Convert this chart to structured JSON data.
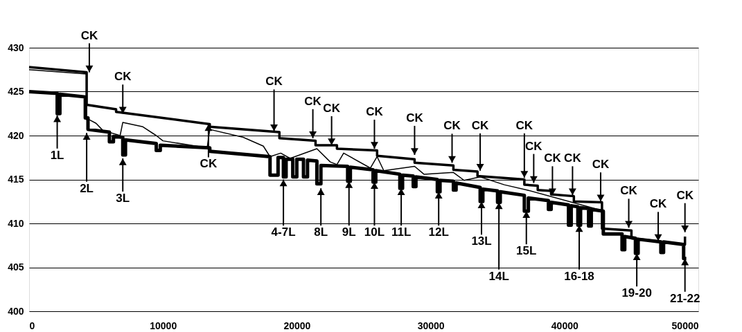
{
  "chart_data": {
    "type": "line",
    "xlim": [
      0,
      50000
    ],
    "ylim": [
      400,
      430
    ],
    "xticks": [
      0,
      10000,
      20000,
      30000,
      40000,
      50000
    ],
    "yticks": [
      400,
      405,
      410,
      415,
      420,
      425,
      430
    ],
    "grid": "y",
    "marker": "none",
    "line_style": "solid",
    "series": [
      {
        "color": "#000000",
        "x": [
          0,
          4300,
          4300,
          6500,
          6500,
          7000,
          13500,
          13500,
          18700,
          18700,
          21400,
          21400,
          23000,
          23000,
          26000,
          26000,
          28800,
          28800,
          31700,
          31700,
          33500,
          33500,
          37000,
          37000,
          38000,
          38000,
          39000,
          39000,
          40700,
          40700,
          42800,
          42800,
          45000,
          45000,
          49000,
          49000
        ],
        "values": [
          427.8,
          427.2,
          423.5,
          423.0,
          422.7,
          422.6,
          421.3,
          421.0,
          420.4,
          419.7,
          419.4,
          418.9,
          418.9,
          418.5,
          418.3,
          417.7,
          417.3,
          416.9,
          416.6,
          416.1,
          415.9,
          415.4,
          415.0,
          414.4,
          414.3,
          413.8,
          413.7,
          413.3,
          413.1,
          412.5,
          412.4,
          409.4,
          409.2,
          408.3,
          407.6,
          408.5
        ]
      },
      {
        "color": "#000000",
        "x": [
          0,
          4300,
          4300,
          4500,
          5000,
          5500,
          6800,
          7000,
          8500,
          9500,
          10000,
          13300,
          13500,
          16000,
          17500,
          18000,
          18800,
          19500,
          21500,
          22500,
          23000,
          23500,
          25500,
          26000,
          26500,
          28800,
          29500,
          31700,
          32500,
          33700,
          35500,
          37200,
          42500
        ],
        "values": [
          427.5,
          427.0,
          421.8,
          421.8,
          421.4,
          420.6,
          420.0,
          421.5,
          421.0,
          420.0,
          419.4,
          418.6,
          420.7,
          419.8,
          418.8,
          417.6,
          418.0,
          417.4,
          418.5,
          417.0,
          416.7,
          418.0,
          416.3,
          417.6,
          416.0,
          416.5,
          415.6,
          415.8,
          414.9,
          415.3,
          414.4,
          413.8,
          411.6
        ]
      },
      {
        "color": "#000000",
        "x": [
          0,
          2100,
          2100,
          2300,
          2300,
          4200,
          4200,
          4400,
          4400,
          6000,
          6000,
          6300,
          6300,
          7000,
          7000,
          7200,
          7200,
          9500,
          9500,
          9800,
          9800,
          13500,
          13500,
          18000,
          18000,
          18600,
          18600,
          19000,
          19000,
          19200,
          19200,
          19700,
          19700,
          20000,
          20000,
          20500,
          20500,
          20800,
          20800,
          21500,
          21500,
          21800,
          21800,
          23800,
          23800,
          24000,
          24000,
          25700,
          25700,
          25900,
          25900,
          27700,
          27700,
          27900,
          27900,
          28700,
          28700,
          28900,
          28900,
          30500,
          30500,
          30700,
          30700,
          31700,
          31700,
          31900,
          31900,
          33700,
          33700,
          33900,
          33900,
          35000,
          35000,
          35200,
          35200,
          37000,
          37000,
          37300,
          37300,
          38800,
          38800,
          39000,
          39000,
          40300,
          40300,
          40500,
          40500,
          41000,
          41000,
          41200,
          41200,
          41800,
          41800,
          42000,
          42000,
          42900,
          42900,
          44300,
          44300,
          44500,
          44500,
          45300,
          45300,
          45500,
          45500,
          47200,
          47200,
          47400,
          47400,
          48900,
          48900,
          49100
        ],
        "values": [
          425.0,
          424.8,
          422.5,
          422.5,
          424.7,
          424.4,
          422.0,
          422.0,
          420.7,
          420.4,
          419.3,
          419.3,
          419.9,
          419.8,
          417.8,
          417.8,
          419.5,
          419.1,
          418.3,
          418.3,
          418.9,
          418.6,
          418.2,
          417.6,
          415.5,
          415.5,
          417.5,
          417.5,
          415.3,
          415.3,
          417.3,
          417.3,
          415.3,
          415.3,
          417.3,
          417.3,
          415.3,
          415.3,
          417.2,
          417.1,
          414.5,
          414.5,
          416.6,
          416.5,
          414.8,
          414.8,
          416.4,
          416.1,
          414.7,
          414.7,
          416.0,
          415.6,
          414.0,
          414.0,
          415.5,
          415.4,
          414.2,
          414.2,
          415.3,
          415.0,
          413.6,
          413.6,
          414.9,
          414.8,
          413.8,
          413.8,
          414.6,
          414.1,
          412.5,
          412.5,
          413.9,
          413.7,
          412.4,
          412.4,
          413.6,
          413.2,
          411.4,
          411.4,
          412.9,
          412.6,
          411.6,
          411.6,
          412.4,
          412.1,
          409.8,
          409.8,
          412.0,
          411.9,
          409.8,
          409.8,
          411.8,
          411.7,
          409.7,
          409.7,
          411.6,
          411.4,
          408.8,
          408.8,
          407.0,
          407.0,
          408.5,
          408.3,
          406.6,
          406.6,
          408.2,
          407.9,
          406.7,
          406.7,
          407.9,
          407.6,
          406.0,
          406.0
        ]
      }
    ],
    "annotations": [
      {
        "text": "CK",
        "x": 4500,
        "y": 427.2
      },
      {
        "text": "CK",
        "x": 7000,
        "y": 422.5
      },
      {
        "text": "CK",
        "x": 13400,
        "y": 421.3
      },
      {
        "text": "CK",
        "x": 18300,
        "y": 420.5
      },
      {
        "text": "CK",
        "x": 21200,
        "y": 419.7
      },
      {
        "text": "CK",
        "x": 22600,
        "y": 418.9
      },
      {
        "text": "CK",
        "x": 25800,
        "y": 418.5
      },
      {
        "text": "CK",
        "x": 28800,
        "y": 417.8
      },
      {
        "text": "CK",
        "x": 31600,
        "y": 416.9
      },
      {
        "text": "CK",
        "x": 33700,
        "y": 416.0
      },
      {
        "text": "CK",
        "x": 37000,
        "y": 415.2
      },
      {
        "text": "CK",
        "x": 37700,
        "y": 414.6
      },
      {
        "text": "CK",
        "x": 39100,
        "y": 413.2
      },
      {
        "text": "CK",
        "x": 40600,
        "y": 413.2
      },
      {
        "text": "CK",
        "x": 42700,
        "y": 412.5
      },
      {
        "text": "CK",
        "x": 44800,
        "y": 409.5
      },
      {
        "text": "CK",
        "x": 47000,
        "y": 408.0
      },
      {
        "text": "CK",
        "x": 49000,
        "y": 409.0
      },
      {
        "text": "1L",
        "x": 2100,
        "y": 422.3
      },
      {
        "text": "2L",
        "x": 4300,
        "y": 420.3
      },
      {
        "text": "3L",
        "x": 7000,
        "y": 417.4
      },
      {
        "text": "4-7L",
        "x": 19000,
        "y": 415.0
      },
      {
        "text": "8L",
        "x": 21800,
        "y": 414.0
      },
      {
        "text": "9L",
        "x": 23900,
        "y": 414.8
      },
      {
        "text": "10L",
        "x": 25800,
        "y": 414.7
      },
      {
        "text": "11L",
        "x": 27800,
        "y": 414.0
      },
      {
        "text": "12L",
        "x": 30600,
        "y": 413.6
      },
      {
        "text": "13L",
        "x": 33800,
        "y": 412.5
      },
      {
        "text": "14L",
        "x": 35100,
        "y": 412.4
      },
      {
        "text": "15L",
        "x": 37150,
        "y": 411.4
      },
      {
        "text": "16-18",
        "x": 41100,
        "y": 409.8
      },
      {
        "text": "19-20",
        "x": 45400,
        "y": 406.6
      },
      {
        "text": "21-22",
        "x": 49000,
        "y": 406.0
      }
    ]
  }
}
